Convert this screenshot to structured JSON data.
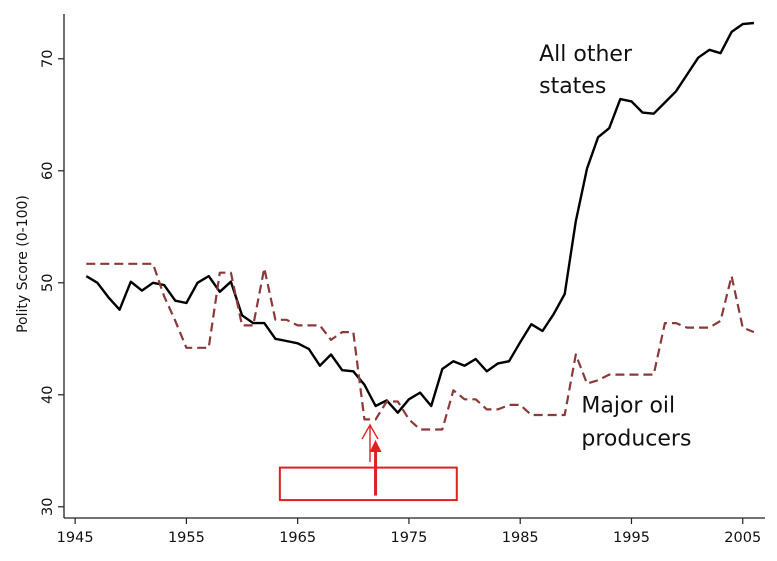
{
  "chart_data": {
    "type": "line",
    "title": "",
    "xlabel": "",
    "ylabel": "Polity Score (0-100)",
    "xlim": [
      1944,
      2007
    ],
    "ylim": [
      29,
      74
    ],
    "xticks": [
      1945,
      1955,
      1965,
      1975,
      1985,
      1995,
      2005
    ],
    "yticks": [
      30,
      40,
      50,
      60,
      70
    ],
    "grid": false,
    "legend": "none",
    "series": [
      {
        "name": "All other states",
        "label_lines": [
          "All other",
          "states"
        ],
        "color": "#000000",
        "style": "solid",
        "x": [
          1946,
          1947,
          1948,
          1949,
          1950,
          1951,
          1952,
          1953,
          1954,
          1955,
          1956,
          1957,
          1958,
          1959,
          1960,
          1961,
          1962,
          1963,
          1964,
          1965,
          1966,
          1967,
          1968,
          1969,
          1970,
          1971,
          1972,
          1973,
          1974,
          1975,
          1976,
          1977,
          1978,
          1979,
          1980,
          1981,
          1982,
          1983,
          1984,
          1985,
          1986,
          1987,
          1988,
          1989,
          1990,
          1991,
          1992,
          1993,
          1994,
          1995,
          1996,
          1997,
          1998,
          1999,
          2000,
          2001,
          2002,
          2003,
          2004,
          2005,
          2006
        ],
        "values": [
          50.6,
          50.0,
          48.7,
          47.6,
          50.1,
          49.3,
          50.0,
          49.8,
          48.4,
          48.2,
          50.0,
          50.6,
          49.2,
          50.1,
          47.1,
          46.4,
          46.4,
          45.0,
          44.8,
          44.6,
          44.1,
          42.6,
          43.6,
          42.2,
          42.1,
          40.9,
          39.0,
          39.5,
          38.4,
          39.6,
          40.2,
          39.0,
          42.3,
          43.0,
          42.6,
          43.2,
          42.1,
          42.8,
          43.0,
          44.7,
          46.3,
          45.7,
          47.2,
          49.0,
          55.5,
          60.2,
          63.0,
          63.8,
          66.4,
          66.2,
          65.2,
          65.1,
          66.1,
          67.1,
          68.6,
          70.1,
          70.8,
          70.5,
          72.4,
          73.1,
          73.2
        ]
      },
      {
        "name": "Major oil producers",
        "label_lines": [
          "Major oil",
          "producers"
        ],
        "color": "#8b3a3a",
        "style": "dashed",
        "x": [
          1946,
          1947,
          1948,
          1949,
          1950,
          1951,
          1952,
          1953,
          1954,
          1955,
          1956,
          1957,
          1958,
          1959,
          1960,
          1961,
          1962,
          1963,
          1964,
          1965,
          1966,
          1967,
          1968,
          1969,
          1970,
          1971,
          1972,
          1973,
          1974,
          1975,
          1976,
          1977,
          1978,
          1979,
          1980,
          1981,
          1982,
          1983,
          1984,
          1985,
          1986,
          1987,
          1988,
          1989,
          1990,
          1991,
          1992,
          1993,
          1994,
          1995,
          1996,
          1997,
          1998,
          1999,
          2000,
          2001,
          2002,
          2003,
          2004,
          2005,
          2006
        ],
        "values": [
          51.7,
          51.7,
          51.7,
          51.7,
          51.7,
          51.7,
          51.7,
          48.8,
          46.6,
          44.2,
          44.2,
          44.2,
          50.9,
          50.9,
          46.2,
          46.2,
          51.3,
          46.7,
          46.7,
          46.2,
          46.2,
          46.2,
          44.9,
          45.6,
          45.6,
          37.8,
          37.8,
          39.4,
          39.4,
          37.8,
          36.9,
          36.9,
          36.9,
          40.4,
          39.6,
          39.6,
          38.7,
          38.7,
          39.1,
          39.1,
          38.2,
          38.2,
          38.2,
          38.2,
          43.6,
          41.0,
          41.3,
          41.8,
          41.8,
          41.8,
          41.8,
          41.8,
          46.4,
          46.4,
          46.0,
          46.0,
          46.0,
          46.6,
          50.6,
          46.0,
          45.6
        ]
      }
    ],
    "annotations": [
      {
        "type": "box",
        "color": "#e02020",
        "x_range": [
          1963.4,
          1979.3
        ],
        "y_range": [
          30.6,
          33.5
        ]
      },
      {
        "type": "arrow",
        "color": "#e02020",
        "x": 1972,
        "y_from": 31.0,
        "y_to": 35.7
      },
      {
        "type": "arrow-outline",
        "color": "#e02020",
        "x": 1971.5,
        "y_from": 34.0,
        "y_to": 37.3
      }
    ]
  }
}
